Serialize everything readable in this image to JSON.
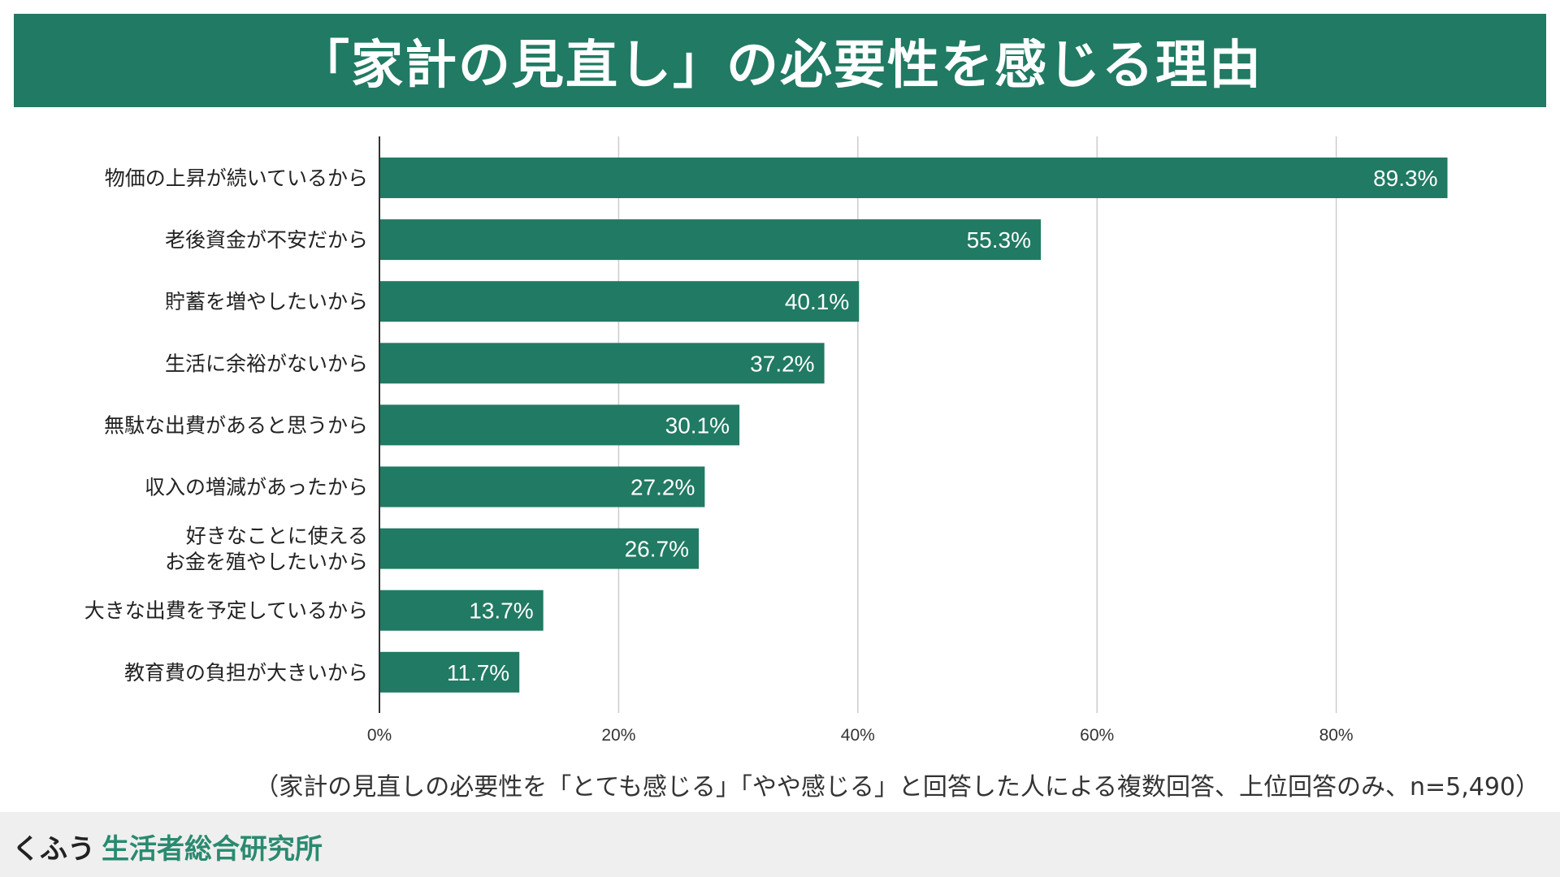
{
  "header": {
    "title": "「家計の見直し」の必要性を感じる理由"
  },
  "chart_data": {
    "type": "bar",
    "orientation": "horizontal",
    "title": "「家計の見直し」の必要性を感じる理由",
    "categories": [
      [
        "物価の上昇が続いているから"
      ],
      [
        "老後資金が不安だから"
      ],
      [
        "貯蓄を増やしたいから"
      ],
      [
        "生活に余裕がないから"
      ],
      [
        "無駄な出費があると思うから"
      ],
      [
        "収入の増減があったから"
      ],
      [
        "好きなことに使える",
        "お金を殖やしたいから"
      ],
      [
        "大きな出費を予定しているから"
      ],
      [
        "教育費の負担が大きいから"
      ]
    ],
    "values": [
      89.3,
      55.3,
      40.1,
      37.2,
      30.1,
      27.2,
      26.7,
      13.7,
      11.7
    ],
    "value_labels": [
      "89.3%",
      "55.3%",
      "40.1%",
      "37.2%",
      "30.1%",
      "27.2%",
      "26.7%",
      "13.7%",
      "11.7%"
    ],
    "xlim": [
      0,
      100
    ],
    "x_ticks": [
      0,
      20,
      40,
      60,
      80
    ],
    "x_tick_labels": [
      "0%",
      "20%",
      "40%",
      "60%",
      "80%"
    ],
    "grid": true,
    "xlabel": "",
    "ylabel": "",
    "bar_color": "#217a63",
    "grid_color": "#cccccc"
  },
  "note": "（家計の見直しの必要性を「とても感じる」「やや感じる」と回答した人による複数回答、上位回答のみ、n=5,490）",
  "footer": {
    "brand_prefix": "くふう",
    "brand_name": "生活者総合研究所"
  },
  "colors": {
    "accent": "#217a63",
    "brand_green": "#2a8a70",
    "footer_bg": "#efefef"
  }
}
